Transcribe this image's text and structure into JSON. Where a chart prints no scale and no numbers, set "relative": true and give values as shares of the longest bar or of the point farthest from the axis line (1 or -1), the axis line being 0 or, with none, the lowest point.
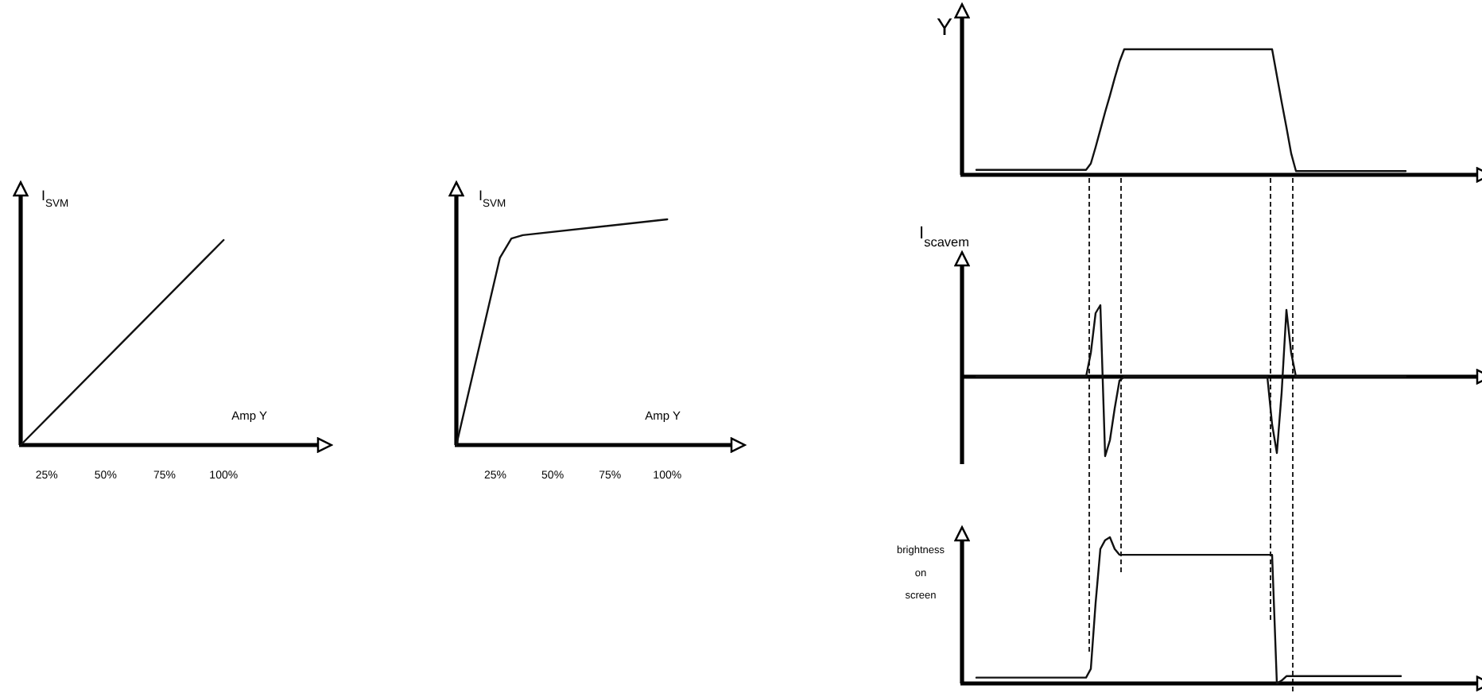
{
  "chart_data": [
    {
      "type": "line",
      "xlabel": "Amp Y",
      "ylabel": "I$_{SVM}$",
      "relative": true,
      "xlim": [
        14,
        140
      ],
      "xticks": [
        {
          "value": 25,
          "label": "25%"
        },
        {
          "value": 50,
          "label": "50%"
        },
        {
          "value": 75,
          "label": "75%"
        },
        {
          "value": 100,
          "label": "100%"
        }
      ],
      "x": [
        14,
        100
      ],
      "series": [
        {
          "color": "#111111",
          "values": [
            0,
            1
          ]
        }
      ]
    },
    {
      "type": "line",
      "xlabel": "Amp Y",
      "ylabel": "I$_{SVM}$",
      "relative": true,
      "xlim": [
        8,
        128
      ],
      "xticks": [
        {
          "value": 25,
          "label": "25%"
        },
        {
          "value": 50,
          "label": "50%"
        },
        {
          "value": 75,
          "label": "75%"
        },
        {
          "value": 100,
          "label": "100%"
        }
      ],
      "x": [
        8,
        27,
        32,
        37,
        100
      ],
      "series": [
        {
          "color": "#111111",
          "values": [
            0,
            0.83,
            0.915,
            0.93,
            1
          ]
        }
      ]
    },
    {
      "type": "line",
      "ylabel": "Y",
      "relative": true,
      "categories": [
        null,
        null,
        null,
        null,
        null,
        null,
        null,
        null,
        null,
        null,
        null,
        null,
        null,
        null,
        null,
        null,
        null,
        null,
        null,
        null,
        null,
        null,
        null,
        null,
        null,
        null,
        null,
        null,
        null,
        null,
        null,
        null,
        null,
        null,
        null,
        null,
        null,
        null,
        null,
        null,
        null,
        null,
        null,
        null,
        null,
        null,
        null,
        null,
        null,
        null,
        null,
        null,
        null,
        null,
        null,
        null,
        null,
        null,
        null,
        null,
        null,
        null,
        null,
        null,
        null,
        null,
        null,
        null,
        null,
        null,
        null,
        null,
        null,
        null,
        null,
        null,
        null,
        null,
        null,
        null,
        null,
        null,
        null,
        null,
        null,
        null,
        null,
        null,
        null,
        null,
        null,
        null,
        null,
        null,
        null,
        null,
        null,
        null,
        null,
        null,
        null,
        null,
        null,
        null,
        null,
        null,
        null,
        null,
        null
      ],
      "series": [
        {
          "color": "#111111",
          "values": [
            null,
            null,
            null,
            0.04,
            0.04,
            0.04,
            0.04,
            0.04,
            0.04,
            0.04,
            0.04,
            0.04,
            0.04,
            0.04,
            0.04,
            0.04,
            0.04,
            0.04,
            0.04,
            0.04,
            0.04,
            0.04,
            0.04,
            0.04,
            0.04,
            0.04,
            0.04,
            0.09,
            0.22,
            0.36,
            0.5,
            0.63,
            0.77,
            0.9,
            1,
            1,
            1,
            1,
            1,
            1,
            1,
            1,
            1,
            1,
            1,
            1,
            1,
            1,
            1,
            1,
            1,
            1,
            1,
            1,
            1,
            1,
            1,
            1,
            1,
            1,
            1,
            1,
            1,
            1,
            1,
            1,
            0.79,
            0.58,
            0.38,
            0.17,
            0.03,
            0.03,
            0.03,
            0.03,
            0.03,
            0.03,
            0.03,
            0.03,
            0.03,
            0.03,
            0.03,
            0.03,
            0.03,
            0.03,
            0.03,
            0.03,
            0.03,
            0.03,
            0.03,
            0.03,
            0.03,
            0.03,
            0.03,
            0.03,
            null,
            null,
            null,
            null,
            null,
            null,
            null,
            null,
            null,
            null,
            null,
            null,
            null,
            null,
            null
          ]
        }
      ]
    },
    {
      "type": "line",
      "ylabel": "I$_{scavem}$",
      "relative": true,
      "categories": [
        null,
        null,
        null,
        null,
        null,
        null,
        null,
        null,
        null,
        null,
        null,
        null,
        null,
        null,
        null,
        null,
        null,
        null,
        null,
        null,
        null,
        null,
        null,
        null,
        null,
        null,
        null,
        null,
        null,
        null,
        null,
        null,
        null,
        null,
        null,
        null,
        null,
        null,
        null,
        null,
        null,
        null,
        null,
        null,
        null,
        null,
        null,
        null,
        null,
        null,
        null,
        null,
        null,
        null,
        null,
        null,
        null,
        null,
        null,
        null,
        null,
        null,
        null,
        null,
        null,
        null,
        null,
        null,
        null,
        null,
        null,
        null,
        null,
        null,
        null,
        null,
        null,
        null,
        null,
        null,
        null,
        null,
        null,
        null,
        null,
        null,
        null,
        null,
        null,
        null,
        null,
        null,
        null,
        null,
        null,
        null,
        null,
        null,
        null,
        null,
        null,
        null,
        null,
        null,
        null,
        null,
        null,
        null,
        null
      ],
      "series": [
        {
          "color": "#111111",
          "values": [
            null,
            null,
            null,
            0,
            0,
            0,
            0,
            0,
            0,
            0,
            0,
            0,
            0,
            0,
            0,
            0,
            0,
            0,
            0,
            0,
            0,
            0,
            0,
            0,
            0,
            0,
            0,
            0.3,
            0.8,
            0.9,
            -1,
            -0.8,
            -0.4,
            -0.05,
            0,
            0,
            0,
            0,
            0,
            0,
            0,
            0,
            0,
            0,
            0,
            0,
            0,
            0,
            0,
            0,
            0,
            0,
            0,
            0,
            0,
            0,
            0,
            0,
            0,
            0,
            0,
            0,
            0,
            0,
            0,
            -0.6,
            -0.96,
            -0.2,
            0.84,
            0.3,
            0,
            0,
            0,
            0,
            0,
            0,
            0,
            0,
            0,
            0,
            0,
            0,
            0,
            0,
            0,
            0,
            0,
            0,
            0,
            0,
            0,
            0,
            0,
            0,
            null,
            null,
            null,
            null,
            null,
            null,
            null,
            null,
            null,
            null,
            null,
            null,
            null,
            null,
            null
          ]
        }
      ]
    },
    {
      "type": "line",
      "ylabel": "brightness\non\nscreen",
      "relative": true,
      "categories": [
        null,
        null,
        null,
        null,
        null,
        null,
        null,
        null,
        null,
        null,
        null,
        null,
        null,
        null,
        null,
        null,
        null,
        null,
        null,
        null,
        null,
        null,
        null,
        null,
        null,
        null,
        null,
        null,
        null,
        null,
        null,
        null,
        null,
        null,
        null,
        null,
        null,
        null,
        null,
        null,
        null,
        null,
        null,
        null,
        null,
        null,
        null,
        null,
        null,
        null,
        null,
        null,
        null,
        null,
        null,
        null,
        null,
        null,
        null,
        null,
        null,
        null,
        null,
        null,
        null,
        null,
        null,
        null,
        null,
        null,
        null,
        null,
        null,
        null,
        null,
        null,
        null,
        null,
        null,
        null,
        null,
        null,
        null,
        null,
        null,
        null,
        null,
        null,
        null,
        null,
        null,
        null,
        null,
        null,
        null,
        null,
        null,
        null,
        null,
        null,
        null,
        null,
        null,
        null,
        null,
        null,
        null,
        null,
        null
      ],
      "series": [
        {
          "color": "#111111",
          "values": [
            null,
            null,
            null,
            0.04,
            0.04,
            0.04,
            0.04,
            0.04,
            0.04,
            0.04,
            0.04,
            0.04,
            0.04,
            0.04,
            0.04,
            0.04,
            0.04,
            0.04,
            0.04,
            0.04,
            0.04,
            0.04,
            0.04,
            0.04,
            0.04,
            0.04,
            0.04,
            0.1,
            0.55,
            0.92,
            0.98,
            1,
            0.92,
            0.88,
            0.88,
            0.88,
            0.88,
            0.88,
            0.88,
            0.88,
            0.88,
            0.88,
            0.88,
            0.88,
            0.88,
            0.88,
            0.88,
            0.88,
            0.88,
            0.88,
            0.88,
            0.88,
            0.88,
            0.88,
            0.88,
            0.88,
            0.88,
            0.88,
            0.88,
            0.88,
            0.88,
            0.88,
            0.88,
            0.88,
            0.88,
            0.88,
            0,
            0.02,
            0.05,
            0.05,
            0.05,
            0.05,
            0.05,
            0.05,
            0.05,
            0.05,
            0.05,
            0.05,
            0.05,
            0.05,
            0.05,
            0.05,
            0.05,
            0.05,
            0.05,
            0.05,
            0.05,
            0.05,
            0.05,
            0.05,
            0.05,
            0.05,
            0.05,
            null,
            null,
            null,
            null,
            null,
            null,
            null,
            null,
            null,
            null,
            null,
            null,
            null,
            null,
            null,
            null
          ]
        }
      ]
    }
  ]
}
